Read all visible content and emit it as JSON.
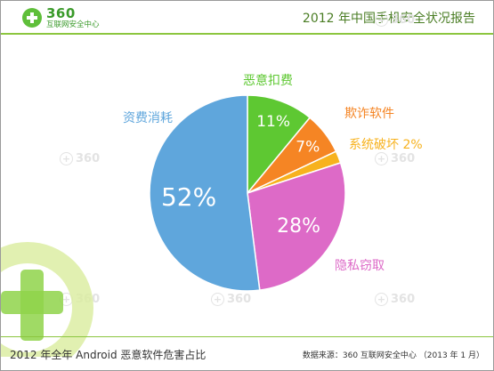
{
  "header": {
    "logo_number": "360",
    "logo_subtitle": "互联网安全中心",
    "title": "2012 年中国手机安全状况报告"
  },
  "watermark_text": "360",
  "chart_data": {
    "type": "pie",
    "slices": [
      {
        "label": "恶意扣费",
        "value": 11,
        "display": "11%",
        "color": "#5ec832"
      },
      {
        "label": "欺诈软件",
        "value": 7,
        "display": "7%",
        "color": "#f58524"
      },
      {
        "label": "系统破坏",
        "value": 2,
        "display": "2%",
        "color": "#f7b21e"
      },
      {
        "label": "隐私窃取",
        "value": 28,
        "display": "28%",
        "color": "#dd6ac7"
      },
      {
        "label": "资费消耗",
        "value": 52,
        "display": "52%",
        "color": "#5fa6dc"
      }
    ],
    "start_angle": "12 o'clock, clockwise",
    "percent_label_color": "#ffffff"
  },
  "footer": {
    "caption": "2012 年全年 Android 恶意软件危害占比",
    "source": "数据来源：360 互联网安全中心 （2013 年 1 月）"
  }
}
